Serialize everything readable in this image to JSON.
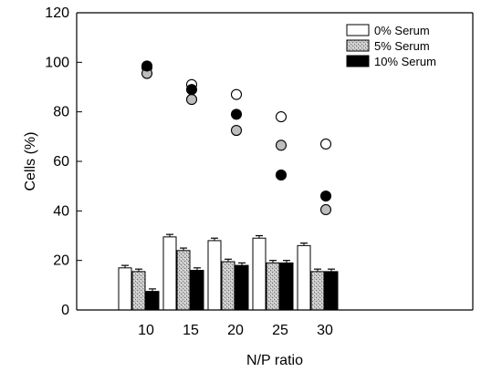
{
  "chart_data": {
    "type": "bar",
    "title": "",
    "xlabel": "N/P ratio",
    "ylabel": "Cells (%)",
    "ylim": [
      0,
      120
    ],
    "yticks": [
      0,
      20,
      40,
      60,
      80,
      100,
      120
    ],
    "categories": [
      "10",
      "15",
      "20",
      "25",
      "30"
    ],
    "legend_position": "top-right",
    "series": [
      {
        "name": "0% Serum",
        "style": "white",
        "values": [
          17,
          29.5,
          28,
          29,
          26
        ],
        "errors": [
          1,
          1,
          1,
          1,
          1
        ],
        "points": [
          98,
          91,
          87,
          78,
          67
        ]
      },
      {
        "name": "5% Serum",
        "style": "stipple-gray",
        "values": [
          15.5,
          24,
          19.5,
          19,
          15.5
        ],
        "errors": [
          1,
          1,
          1,
          1,
          1
        ],
        "points": [
          95.5,
          85,
          72.5,
          66.5,
          40.5
        ]
      },
      {
        "name": "10% Serum",
        "style": "black",
        "values": [
          7.5,
          16,
          18,
          19,
          15.5
        ],
        "errors": [
          1,
          1,
          1,
          1,
          1
        ],
        "points": [
          98.5,
          89,
          79,
          54.5,
          46
        ]
      }
    ]
  }
}
